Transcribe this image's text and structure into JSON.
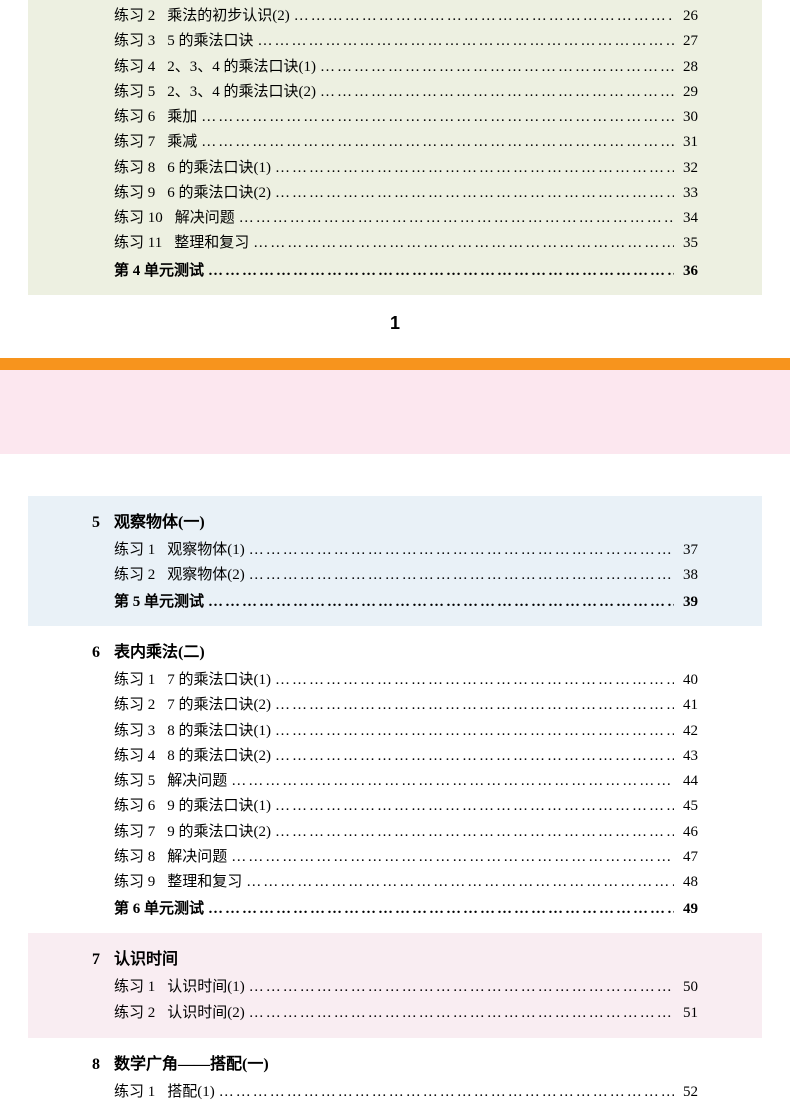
{
  "page_break_number": "1",
  "top_block": {
    "items": [
      {
        "label": "练习 2",
        "title": "乘法的初步认识(2)",
        "page": "26"
      },
      {
        "label": "练习 3",
        "title": "5 的乘法口诀",
        "page": "27"
      },
      {
        "label": "练习 4",
        "title": "2、3、4 的乘法口诀(1)",
        "page": "28"
      },
      {
        "label": "练习 5",
        "title": "2、3、4 的乘法口诀(2)",
        "page": "29"
      },
      {
        "label": "练习 6",
        "title": "乘加",
        "page": "30"
      },
      {
        "label": "练习 7",
        "title": "乘减",
        "page": "31"
      },
      {
        "label": "练习 8",
        "title": "6 的乘法口诀(1)",
        "page": "32"
      },
      {
        "label": "练习 9",
        "title": "6 的乘法口诀(2)",
        "page": "33"
      },
      {
        "label": "练习 10",
        "title": "解决问题",
        "page": "34"
      },
      {
        "label": "练习 11",
        "title": "整理和复习",
        "page": "35"
      }
    ],
    "test": {
      "label": "第 4 单元测试",
      "page": "36"
    }
  },
  "sections": [
    {
      "block_class": "block-blue",
      "num": "5",
      "title": "观察物体(一)",
      "items": [
        {
          "label": "练习 1",
          "title": "观察物体(1)",
          "page": "37"
        },
        {
          "label": "练习 2",
          "title": "观察物体(2)",
          "page": "38"
        }
      ],
      "test": {
        "label": "第 5 单元测试",
        "page": "39"
      }
    },
    {
      "block_class": "block-plain",
      "num": "6",
      "title": "表内乘法(二)",
      "items": [
        {
          "label": "练习 1",
          "title": "7 的乘法口诀(1)",
          "page": "40"
        },
        {
          "label": "练习 2",
          "title": "7 的乘法口诀(2)",
          "page": "41"
        },
        {
          "label": "练习 3",
          "title": "8 的乘法口诀(1)",
          "page": "42"
        },
        {
          "label": "练习 4",
          "title": "8 的乘法口诀(2)",
          "page": "43"
        },
        {
          "label": "练习 5",
          "title": "解决问题",
          "page": "44"
        },
        {
          "label": "练习 6",
          "title": "9 的乘法口诀(1)",
          "page": "45"
        },
        {
          "label": "练习 7",
          "title": "9 的乘法口诀(2)",
          "page": "46"
        },
        {
          "label": "练习 8",
          "title": "解决问题",
          "page": "47"
        },
        {
          "label": "练习 9",
          "title": "整理和复习",
          "page": "48"
        }
      ],
      "test": {
        "label": "第 6 单元测试",
        "page": "49"
      }
    },
    {
      "block_class": "block-pink",
      "num": "7",
      "title": "认识时间",
      "items": [
        {
          "label": "练习 1",
          "title": "认识时间(1)",
          "page": "50"
        },
        {
          "label": "练习 2",
          "title": "认识时间(2)",
          "page": "51"
        }
      ],
      "test": null
    },
    {
      "block_class": "block-plain",
      "num": "8",
      "title": "数学广角——搭配(一)",
      "items": [
        {
          "label": "练习 1",
          "title": "搭配(1)",
          "page": "52"
        }
      ],
      "test": null
    }
  ]
}
